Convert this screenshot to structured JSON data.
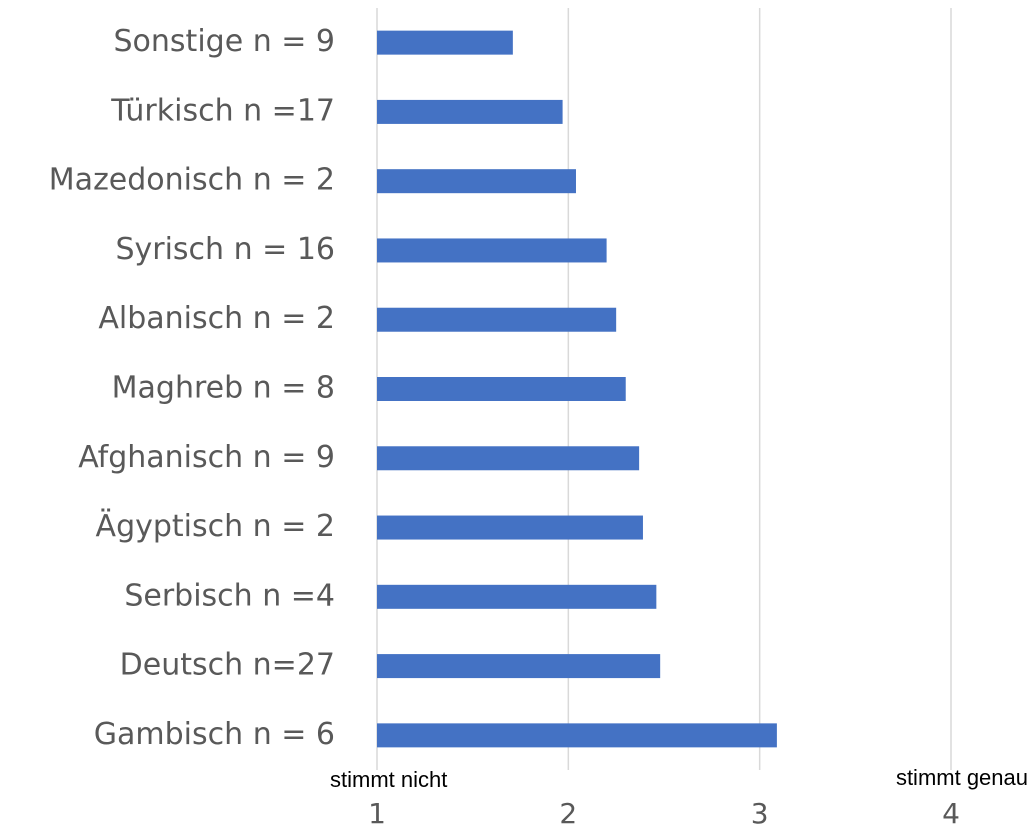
{
  "chart_data": {
    "type": "bar",
    "orientation": "horizontal",
    "categories": [
      "Sonstige n = 9",
      "Türkisch n =17",
      "Mazedonisch n = 2",
      "Syrisch n = 16",
      "Albanisch n = 2",
      "Maghreb  n = 8",
      "Afghanisch n = 9",
      "Ägyptisch n = 2",
      "Serbisch n =4",
      "Deutsch n=27",
      "Gambisch n = 6"
    ],
    "values": [
      1.71,
      1.97,
      2.04,
      2.2,
      2.25,
      2.3,
      2.37,
      2.39,
      2.46,
      2.48,
      3.09
    ],
    "color": "#4472c4",
    "xlim": [
      1,
      4
    ],
    "xticks": [
      1,
      2,
      3,
      4
    ],
    "grid": true,
    "annotations": [
      "stimmt nicht",
      "stimmt genau"
    ]
  }
}
